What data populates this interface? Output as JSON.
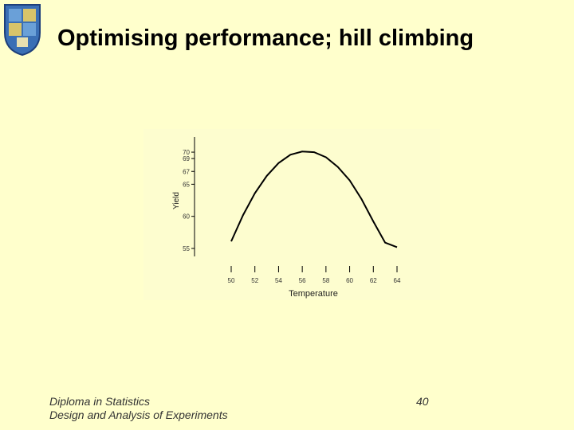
{
  "slide": {
    "title": "Optimising performance; hill climbing",
    "footer_line1": "Diploma in Statistics",
    "footer_line2": "Design and Analysis of Experiments",
    "page_number": "40"
  },
  "logo": {
    "icon": "crest-icon"
  },
  "chart_data": {
    "type": "line",
    "title": "",
    "xlabel": "Temperature",
    "ylabel": "Yield",
    "x_ticks": [
      {
        "value": 50,
        "label": "50"
      },
      {
        "value": 52,
        "label": "52"
      },
      {
        "value": 54,
        "label": "54"
      },
      {
        "value": 56,
        "label": "56"
      },
      {
        "value": 58,
        "label": "58"
      },
      {
        "value": 60,
        "label": "60"
      },
      {
        "value": 62,
        "label": "62"
      },
      {
        "value": 64,
        "label": "64"
      }
    ],
    "y_ticks": [
      {
        "value": 55,
        "label": "55"
      },
      {
        "value": 60,
        "label": "60"
      },
      {
        "value": 65,
        "label": "65"
      },
      {
        "value": 67,
        "label": "67"
      },
      {
        "value": 69,
        "label": "69"
      },
      {
        "value": 70,
        "label": "70"
      }
    ],
    "xlim": [
      50,
      64
    ],
    "ylim": [
      55,
      71
    ],
    "grid": false,
    "series": [
      {
        "values_x": [
          50,
          51,
          52,
          53,
          54,
          55,
          56,
          57,
          58,
          59,
          60,
          61,
          62,
          63,
          64
        ],
        "values_y": [
          56.1,
          60.2,
          63.6,
          66.3,
          68.3,
          69.6,
          70.1,
          70.0,
          69.2,
          67.7,
          65.6,
          62.7,
          59.2,
          55.9,
          55.2
        ]
      }
    ]
  },
  "colors": {
    "background": "#ffffcc",
    "text": "#000000",
    "curve": "#000000"
  }
}
